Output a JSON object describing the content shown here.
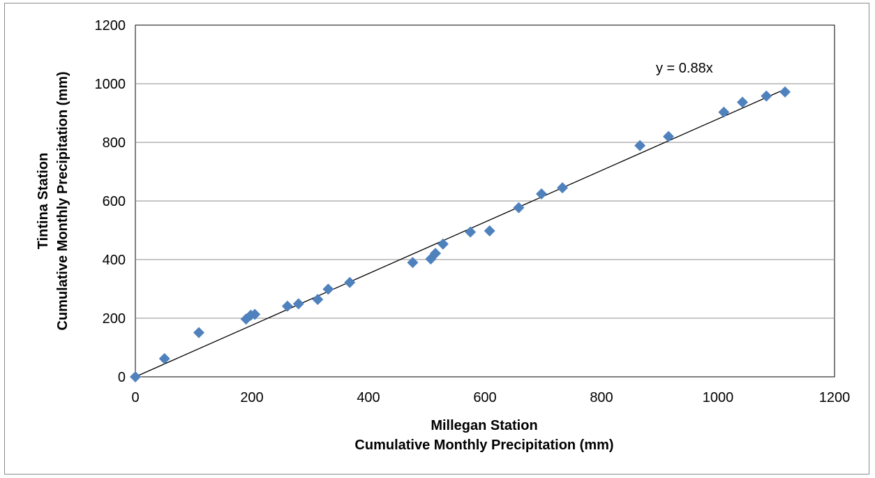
{
  "chart_data": {
    "type": "scatter",
    "title": "",
    "xlabel": [
      "Millegan Station",
      "Cumulative Monthly Precipitation (mm)"
    ],
    "ylabel": [
      "Tintina Station",
      "Cumulative Monthly Precipitation (mm)"
    ],
    "xlim": [
      0,
      1200
    ],
    "ylim": [
      0,
      1200
    ],
    "xticks": [
      0,
      200,
      400,
      600,
      800,
      1000,
      1200
    ],
    "yticks": [
      0,
      200,
      400,
      600,
      800,
      1000,
      1200
    ],
    "grid": "horizontal",
    "legend": "none",
    "marker_color": "#4f81bd",
    "series": [
      {
        "points": [
          [
            0,
            0
          ],
          [
            50,
            62
          ],
          [
            109,
            151
          ],
          [
            190,
            197
          ],
          [
            198,
            210
          ],
          [
            205,
            213
          ],
          [
            261,
            241
          ],
          [
            280,
            249
          ],
          [
            313,
            264
          ],
          [
            331,
            299
          ],
          [
            368,
            322
          ],
          [
            476,
            390
          ],
          [
            507,
            402
          ],
          [
            515,
            421
          ],
          [
            528,
            453
          ],
          [
            575,
            494
          ],
          [
            608,
            498
          ],
          [
            658,
            577
          ],
          [
            697,
            624
          ],
          [
            733,
            645
          ],
          [
            866,
            789
          ],
          [
            915,
            820
          ],
          [
            1010,
            903
          ],
          [
            1042,
            937
          ],
          [
            1083,
            958
          ],
          [
            1115,
            972
          ]
        ]
      }
    ],
    "trendline": {
      "slope": 0.88,
      "x_range": [
        0,
        1115
      ],
      "label": "y = 0.88x"
    }
  }
}
